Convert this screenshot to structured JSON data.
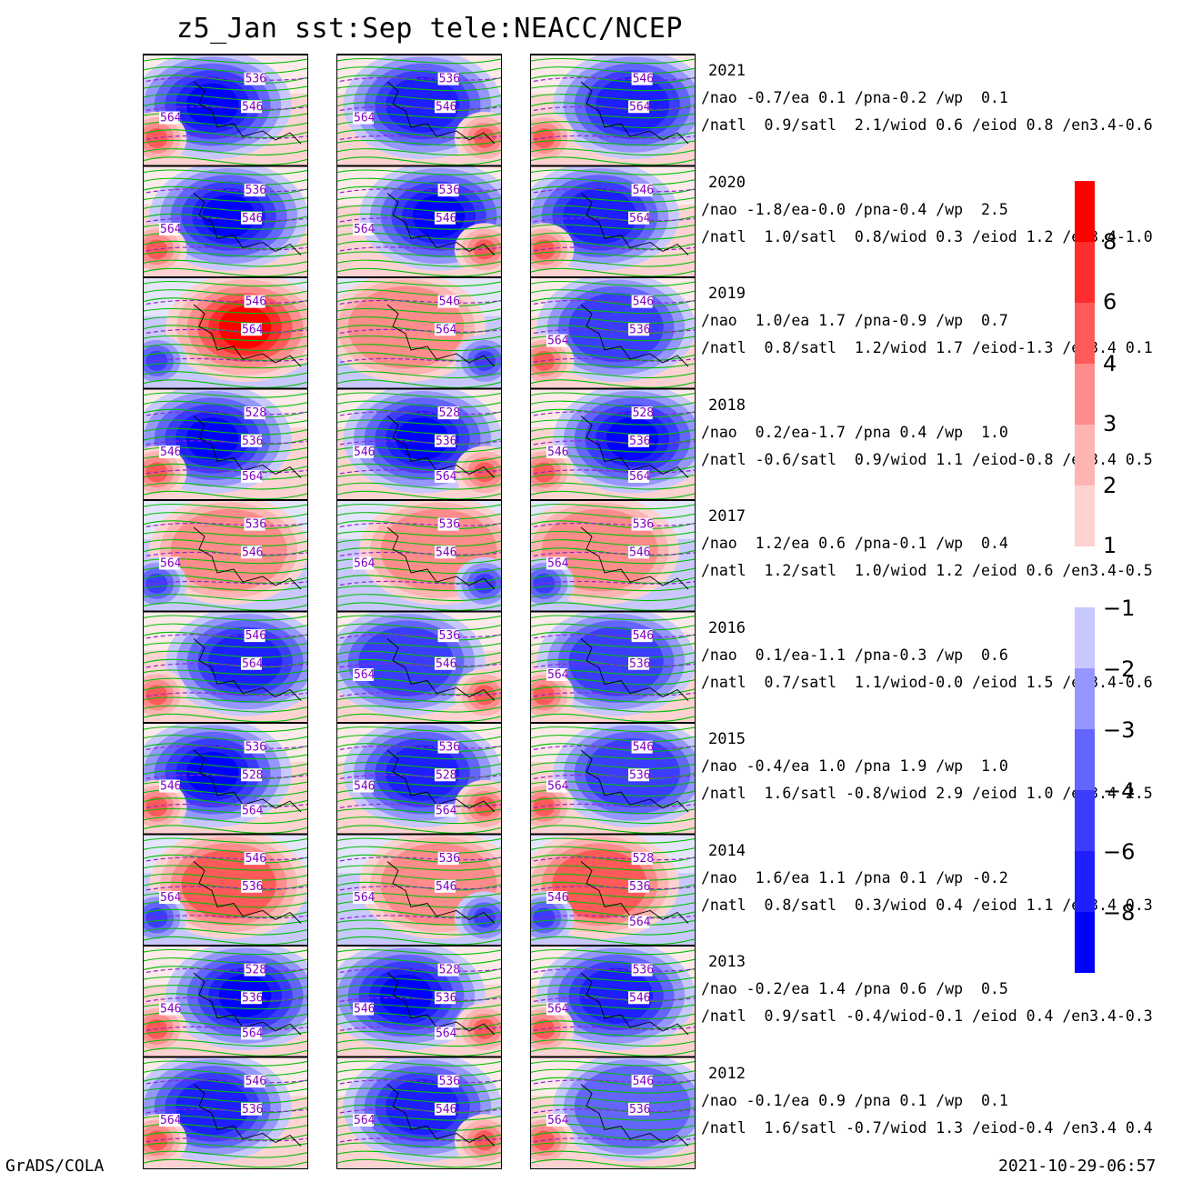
{
  "title": "z5_Jan sst:Sep tele:NEACC/NCEP",
  "footer": {
    "left": "GrADS/COLA",
    "right": "2021-10-29-06:57"
  },
  "rows": [
    {
      "year": "2021",
      "line1": "/nao -0.7/ea 0.1 /pna-0.2 /wp  0.1",
      "line2": "/natl  0.9/satl  2.1/wiod 0.6 /eiod 0.8 /en3.4-0.6",
      "panels": [
        {
          "bg": -7,
          "c": [
            "536",
            "546",
            "564"
          ]
        },
        {
          "bg": -5,
          "c": [
            "536",
            "546",
            "564"
          ]
        },
        {
          "bg": -5,
          "c": [
            "546",
            "564"
          ]
        }
      ]
    },
    {
      "year": "2020",
      "line1": "/nao -1.8/ea-0.0 /pna-0.4 /wp  2.5",
      "line2": "/natl  1.0/satl  0.8/wiod 0.3 /eiod 1.2 /en3.4-1.0",
      "panels": [
        {
          "bg": -7,
          "c": [
            "536",
            "546",
            "564"
          ]
        },
        {
          "bg": -6,
          "c": [
            "536",
            "546",
            "564"
          ]
        },
        {
          "bg": -5,
          "c": [
            "546",
            "564"
          ]
        }
      ]
    },
    {
      "year": "2019",
      "line1": "/nao  1.0/ea 1.7 /pna-0.9 /wp  0.7",
      "line2": "/natl  0.8/satl  1.2/wiod 1.7 /eiod-1.3 /en3.4 0.1",
      "panels": [
        {
          "bg": 6,
          "c": [
            "546",
            "564"
          ]
        },
        {
          "bg": 3,
          "c": [
            "546",
            "564"
          ]
        },
        {
          "bg": -4,
          "c": [
            "546",
            "536",
            "564"
          ]
        }
      ]
    },
    {
      "year": "2018",
      "line1": "/nao  0.2/ea-1.7 /pna 0.4 /wp  1.0",
      "line2": "/natl -0.6/satl  0.9/wiod 1.1 /eiod-0.8 /en3.4 0.5",
      "panels": [
        {
          "bg": -6,
          "c": [
            "528",
            "536",
            "546",
            "564"
          ]
        },
        {
          "bg": -6,
          "c": [
            "528",
            "536",
            "546",
            "564"
          ]
        },
        {
          "bg": -7,
          "c": [
            "528",
            "536",
            "546",
            "564"
          ]
        }
      ]
    },
    {
      "year": "2017",
      "line1": "/nao  1.2/ea 0.6 /pna-0.1 /wp  0.4",
      "line2": "/natl  1.2/satl  1.0/wiod 1.2 /eiod 0.6 /en3.4-0.5",
      "panels": [
        {
          "bg": 3,
          "c": [
            "536",
            "546",
            "564"
          ]
        },
        {
          "bg": 3,
          "c": [
            "536",
            "546",
            "564"
          ]
        },
        {
          "bg": 3,
          "c": [
            "536",
            "546",
            "564"
          ]
        }
      ]
    },
    {
      "year": "2016",
      "line1": "/nao  0.1/ea-1.1 /pna-0.3 /wp  0.6",
      "line2": "/natl  0.7/satl  1.1/wiod-0.0 /eiod 1.5 /en3.4-0.6",
      "panels": [
        {
          "bg": -5,
          "c": [
            "546",
            "564"
          ]
        },
        {
          "bg": -4,
          "c": [
            "536",
            "546",
            "564"
          ]
        },
        {
          "bg": -4,
          "c": [
            "546",
            "536",
            "564"
          ]
        }
      ]
    },
    {
      "year": "2015",
      "line1": "/nao -0.4/ea 1.0 /pna 1.9 /wp  1.0",
      "line2": "/natl  1.6/satl -0.8/wiod 2.9 /eiod 1.0 /en3.4 2.5",
      "panels": [
        {
          "bg": -6,
          "c": [
            "536",
            "528",
            "546",
            "564"
          ]
        },
        {
          "bg": -5,
          "c": [
            "536",
            "528",
            "546",
            "564"
          ]
        },
        {
          "bg": -4,
          "c": [
            "546",
            "536",
            "564"
          ]
        }
      ]
    },
    {
      "year": "2014",
      "line1": "/nao  1.6/ea 1.1 /pna 0.1 /wp -0.2",
      "line2": "/natl  0.8/satl  0.3/wiod 0.4 /eiod 1.1 /en3.4 0.3",
      "panels": [
        {
          "bg": 4,
          "c": [
            "546",
            "536",
            "564"
          ]
        },
        {
          "bg": 3,
          "c": [
            "536",
            "546",
            "564"
          ]
        },
        {
          "bg": 4,
          "c": [
            "528",
            "536",
            "546",
            "564"
          ]
        }
      ]
    },
    {
      "year": "2013",
      "line1": "/nao -0.2/ea 1.4 /pna 0.6 /wp  0.5",
      "line2": "/natl  0.9/satl -0.4/wiod-0.1 /eiod 0.4 /en3.4-0.3",
      "panels": [
        {
          "bg": -6,
          "c": [
            "528",
            "536",
            "546",
            "564"
          ]
        },
        {
          "bg": -6,
          "c": [
            "528",
            "536",
            "546",
            "564"
          ]
        },
        {
          "bg": -5,
          "c": [
            "536",
            "546",
            "564"
          ]
        }
      ]
    },
    {
      "year": "2012",
      "line1": "/nao -0.1/ea 0.9 /pna 0.1 /wp  0.1",
      "line2": "/natl  1.6/satl -0.7/wiod 1.3 /eiod-0.4 /en3.4 0.4",
      "panels": [
        {
          "bg": -5,
          "c": [
            "546",
            "536",
            "564"
          ]
        },
        {
          "bg": -5,
          "c": [
            "536",
            "546",
            "564"
          ]
        },
        {
          "bg": -3,
          "c": [
            "546",
            "536",
            "564"
          ]
        }
      ]
    }
  ],
  "colorbar": {
    "positive": {
      "ticks": [
        "8",
        "6",
        "4",
        "3",
        "2",
        "1"
      ],
      "colors": [
        "#ff0000",
        "#ff2d2d",
        "#ff5a5a",
        "#ff8c8c",
        "#ffb4b4",
        "#ffd2d2"
      ]
    },
    "negative": {
      "ticks": [
        "-1",
        "-2",
        "-3",
        "-4",
        "-6",
        "-8"
      ],
      "colors": [
        "#c8c8ff",
        "#9696ff",
        "#6464ff",
        "#3c3cff",
        "#1e1eff",
        "#0000ff"
      ]
    }
  },
  "colors": {
    "contour": "#00c000",
    "dashed": "#8c28c8",
    "label": "#8000c0"
  }
}
